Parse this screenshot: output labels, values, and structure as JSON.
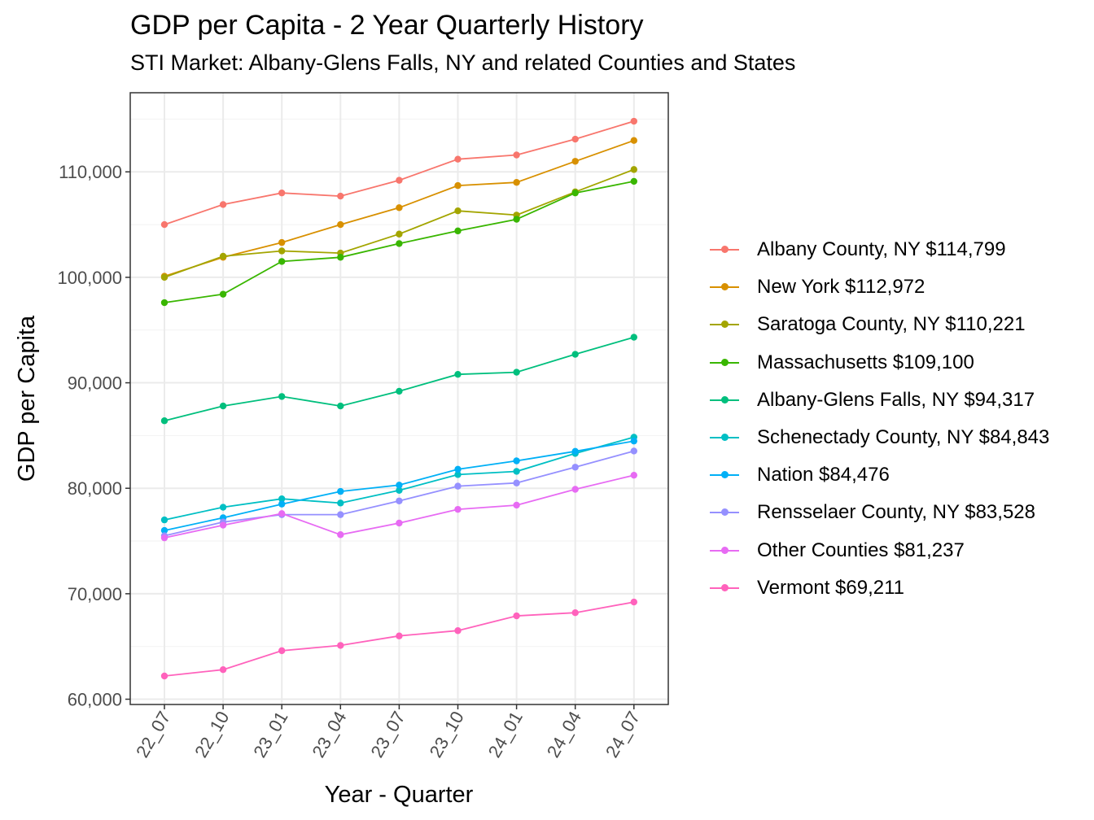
{
  "chart_data": {
    "type": "line",
    "title": "GDP per Capita - 2 Year Quarterly History",
    "subtitle": "STI Market: Albany-Glens Falls, NY and related Counties and States",
    "xlabel": "Year - Quarter",
    "ylabel": "GDP per Capita",
    "categories": [
      "22_07",
      "22_10",
      "23_01",
      "23_04",
      "23_07",
      "23_10",
      "24_01",
      "24_04",
      "24_07"
    ],
    "ylim": [
      59500,
      117500
    ],
    "yticks": [
      60000,
      70000,
      80000,
      90000,
      100000,
      110000
    ],
    "ytick_labels": [
      "60,000",
      "70,000",
      "80,000",
      "90,000",
      "100,000",
      "110,000"
    ],
    "grid": true,
    "legend_position": "right",
    "series": [
      {
        "name": "Albany County, NY $114,799",
        "color": "#F8766D",
        "values": [
          105000,
          106900,
          108000,
          107700,
          109200,
          111200,
          111600,
          113100,
          114799
        ]
      },
      {
        "name": "New York $112,972",
        "color": "#D89000",
        "values": [
          100100,
          101900,
          103300,
          105000,
          106600,
          108700,
          109000,
          111000,
          112972
        ]
      },
      {
        "name": "Saratoga County, NY $110,221",
        "color": "#A3A500",
        "values": [
          100000,
          102000,
          102500,
          102300,
          104100,
          106300,
          105900,
          108100,
          110221
        ]
      },
      {
        "name": "Massachusetts $109,100",
        "color": "#39B600",
        "values": [
          97600,
          98400,
          101500,
          101900,
          103200,
          104400,
          105500,
          108000,
          109100
        ]
      },
      {
        "name": "Albany-Glens Falls, NY $94,317",
        "color": "#00BF7D",
        "values": [
          86400,
          87800,
          88700,
          87800,
          89200,
          90800,
          91000,
          92700,
          94317
        ]
      },
      {
        "name": "Schenectady County, NY $84,843",
        "color": "#00BFC4",
        "values": [
          77000,
          78200,
          79000,
          78600,
          79800,
          81300,
          81600,
          83300,
          84843
        ]
      },
      {
        "name": "Nation $84,476",
        "color": "#00B0F6",
        "values": [
          76000,
          77200,
          78500,
          79700,
          80300,
          81800,
          82600,
          83500,
          84476
        ]
      },
      {
        "name": "Rensselaer County, NY $83,528",
        "color": "#9590FF",
        "values": [
          75500,
          76800,
          77500,
          77500,
          78800,
          80200,
          80500,
          82000,
          83528
        ]
      },
      {
        "name": "Other Counties $81,237",
        "color": "#E76BF3",
        "values": [
          75300,
          76500,
          77600,
          75600,
          76700,
          78000,
          78400,
          79900,
          81237
        ]
      },
      {
        "name": "Vermont $69,211",
        "color": "#FF62BC",
        "values": [
          62200,
          62800,
          64600,
          65100,
          66000,
          66500,
          67900,
          68200,
          69211
        ]
      }
    ]
  }
}
